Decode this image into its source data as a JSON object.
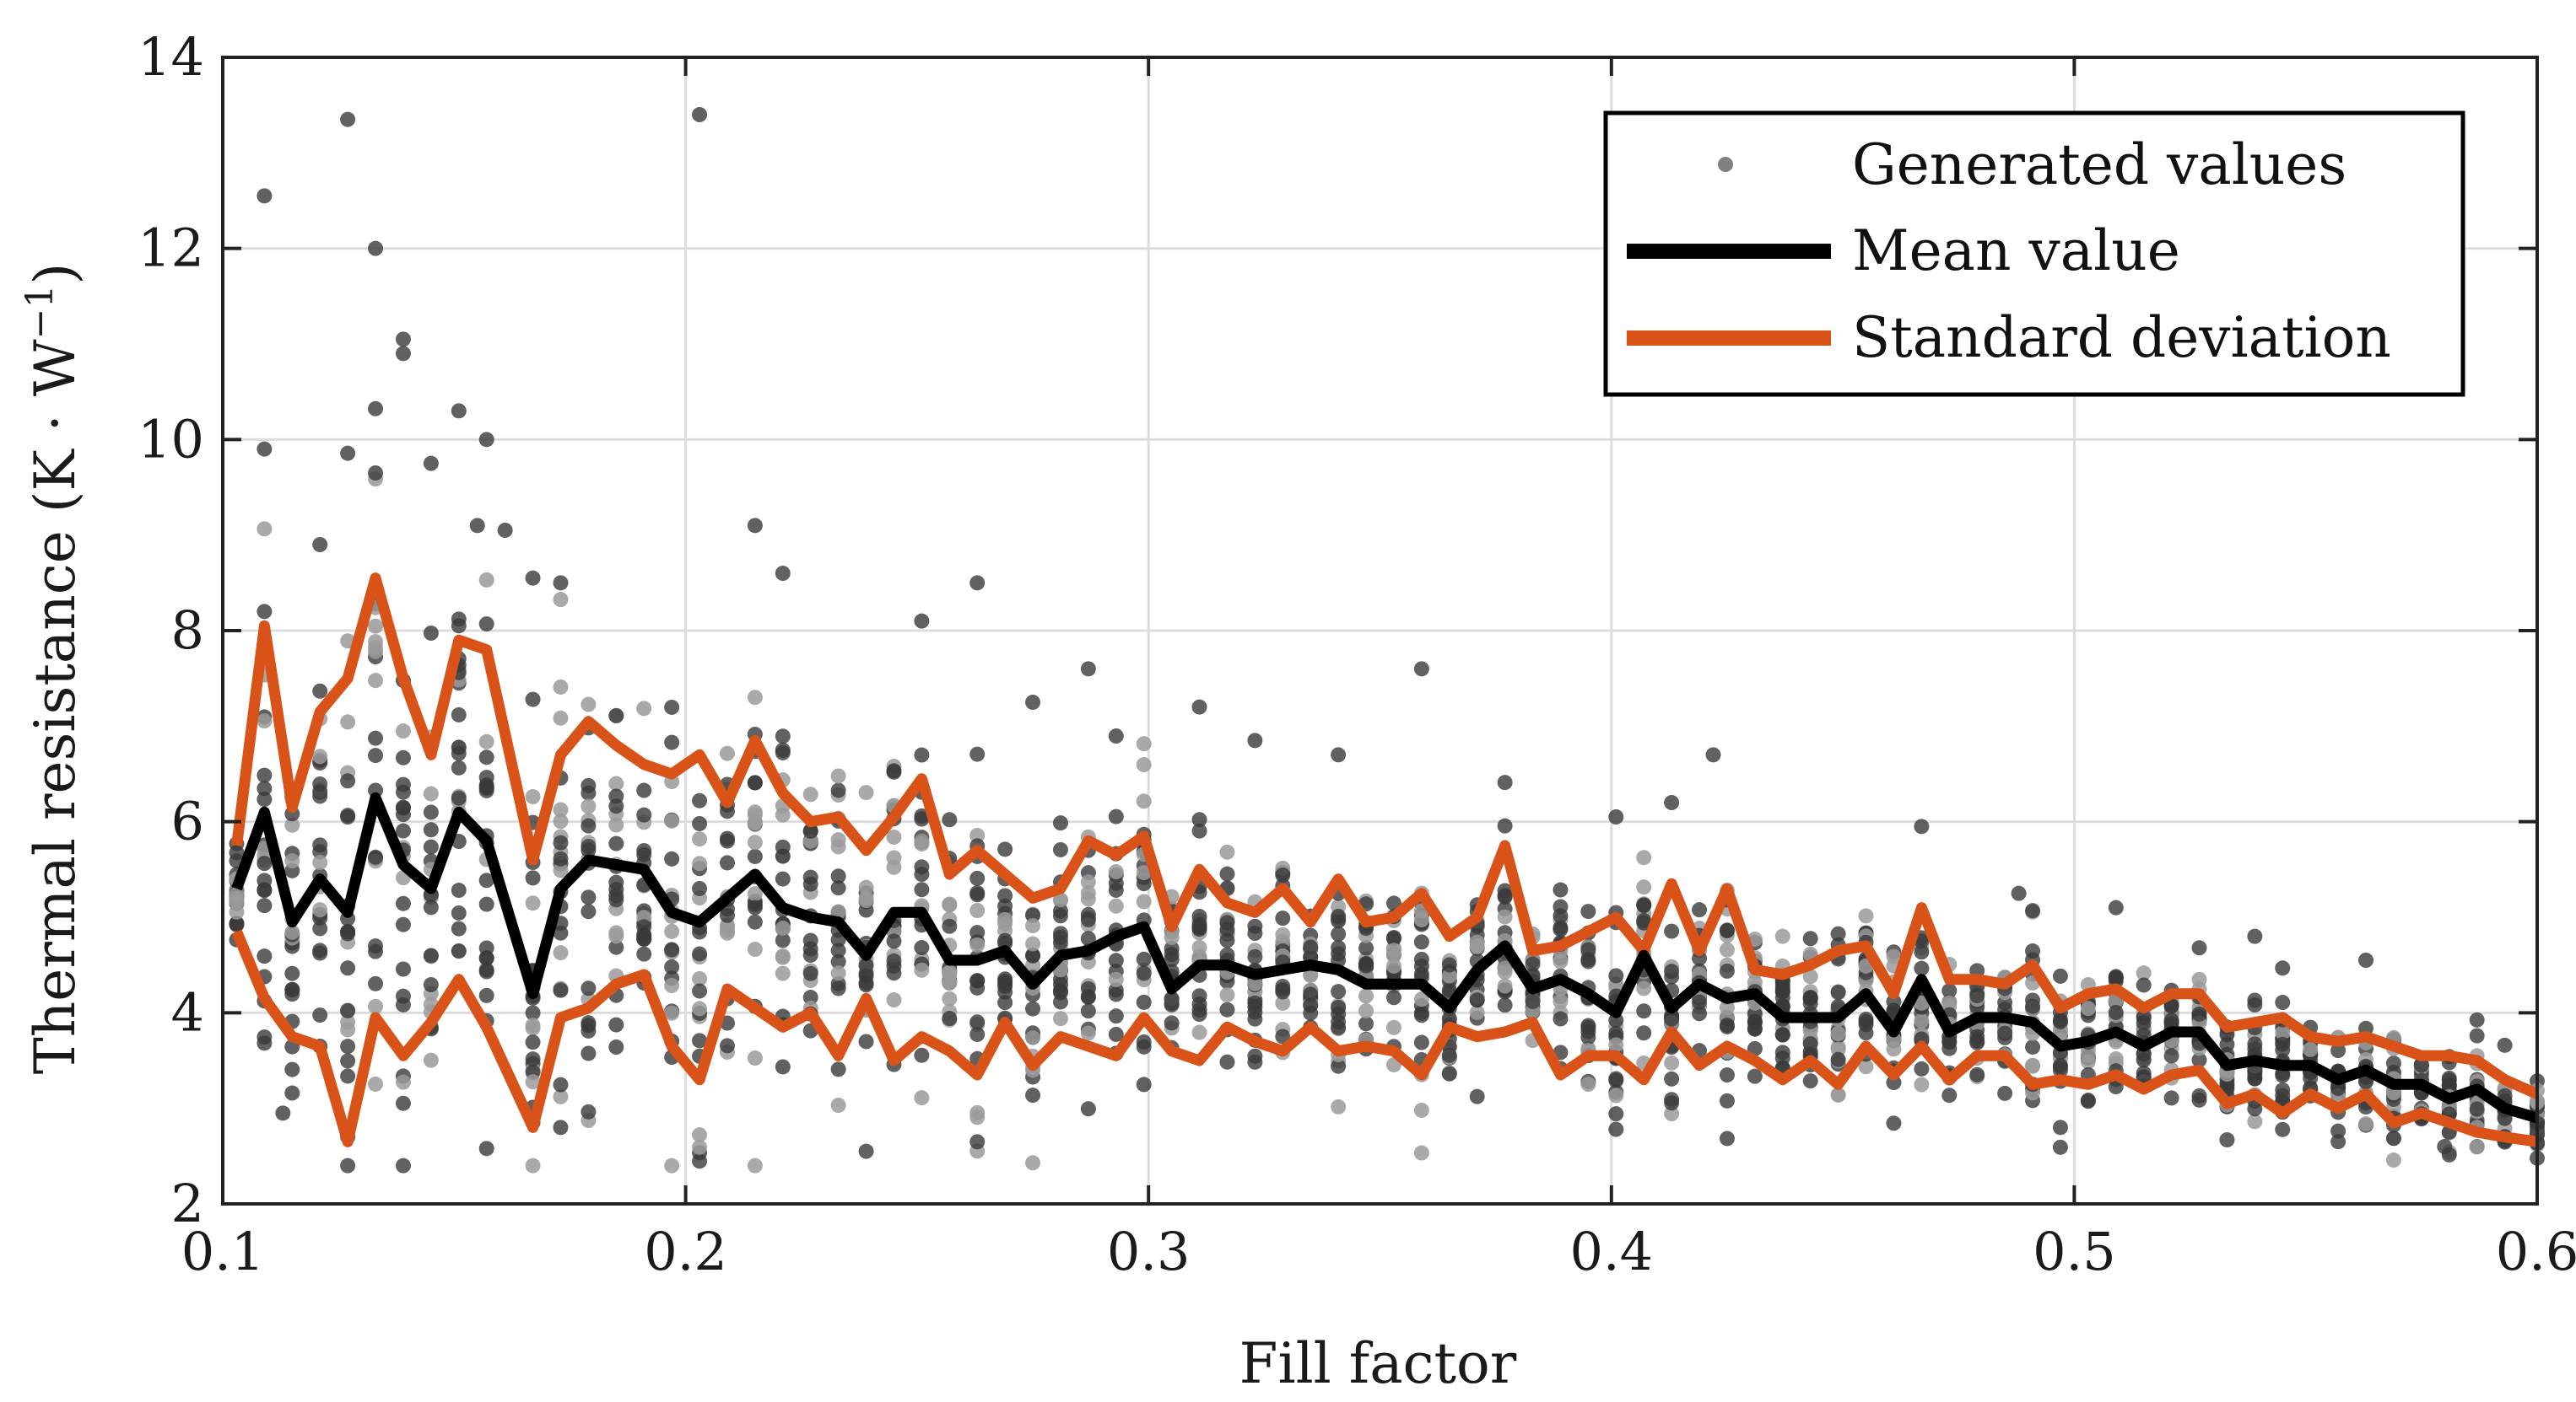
{
  "chart_data": {
    "type": "scatter+line",
    "title": "",
    "xlabel": "Fill factor",
    "ylabel": "Thermal resistance (K · W",
    "ylabel_superscript": "−1",
    "ylabel_close": ")",
    "xlim": [
      0.1,
      0.6
    ],
    "ylim": [
      2,
      14
    ],
    "xticks": [
      0.1,
      0.2,
      0.3,
      0.4,
      0.5,
      0.6
    ],
    "xtick_labels": [
      "0.1",
      "0.2",
      "0.3",
      "0.4",
      "0.5",
      "0.6"
    ],
    "yticks": [
      2,
      4,
      6,
      8,
      10,
      12,
      14
    ],
    "ytick_labels": [
      "2",
      "4",
      "6",
      "8",
      "10",
      "12",
      "14"
    ],
    "grid": true,
    "legend": {
      "position": "top-right",
      "entries": [
        {
          "label": "Generated values",
          "marker": "dot",
          "color": "#808080"
        },
        {
          "label": "Mean value",
          "marker": "line",
          "color": "#000000"
        },
        {
          "label": "Standard deviation",
          "marker": "line",
          "color": "#D95319"
        }
      ]
    },
    "colors": {
      "scatter_dark": "#3a3a3a",
      "scatter_light": "#9a9a9a",
      "mean": "#000000",
      "std": "#D95319",
      "grid": "#dcdcdc"
    },
    "series": [
      {
        "name": "Mean value",
        "x": [
          0.103,
          0.109,
          0.115,
          0.121,
          0.127,
          0.133,
          0.139,
          0.145,
          0.151,
          0.157,
          0.167,
          0.173,
          0.179,
          0.185,
          0.191,
          0.197,
          0.203,
          0.209,
          0.215,
          0.221,
          0.227,
          0.233,
          0.239,
          0.245,
          0.251,
          0.257,
          0.263,
          0.269,
          0.275,
          0.281,
          0.287,
          0.293,
          0.299,
          0.305,
          0.311,
          0.317,
          0.323,
          0.329,
          0.335,
          0.341,
          0.347,
          0.353,
          0.359,
          0.365,
          0.371,
          0.377,
          0.383,
          0.389,
          0.395,
          0.401,
          0.407,
          0.413,
          0.419,
          0.425,
          0.431,
          0.437,
          0.443,
          0.449,
          0.455,
          0.461,
          0.467,
          0.473,
          0.479,
          0.485,
          0.491,
          0.497,
          0.503,
          0.509,
          0.515,
          0.521,
          0.527,
          0.533,
          0.539,
          0.545,
          0.551,
          0.557,
          0.563,
          0.569,
          0.575,
          0.581,
          0.587,
          0.593,
          0.6
        ],
        "y": [
          5.3,
          6.1,
          4.95,
          5.4,
          5.05,
          6.25,
          5.55,
          5.3,
          6.1,
          5.8,
          4.2,
          5.3,
          5.6,
          5.55,
          5.5,
          5.05,
          4.95,
          5.2,
          5.45,
          5.1,
          5.0,
          4.95,
          4.6,
          5.05,
          5.05,
          4.55,
          4.55,
          4.65,
          4.3,
          4.6,
          4.65,
          4.8,
          4.9,
          4.25,
          4.5,
          4.5,
          4.4,
          4.45,
          4.5,
          4.45,
          4.3,
          4.3,
          4.3,
          4.05,
          4.45,
          4.7,
          4.25,
          4.35,
          4.2,
          4.0,
          4.6,
          4.05,
          4.3,
          4.15,
          4.2,
          3.95,
          3.95,
          3.95,
          4.2,
          3.8,
          4.35,
          3.8,
          3.95,
          3.95,
          3.9,
          3.65,
          3.7,
          3.8,
          3.65,
          3.8,
          3.8,
          3.45,
          3.5,
          3.45,
          3.45,
          3.3,
          3.4,
          3.25,
          3.25,
          3.1,
          3.2,
          3.0,
          2.9
        ]
      },
      {
        "name": "Standard deviation (upper)",
        "x": [
          0.103,
          0.109,
          0.115,
          0.121,
          0.127,
          0.133,
          0.139,
          0.145,
          0.151,
          0.157,
          0.167,
          0.173,
          0.179,
          0.185,
          0.191,
          0.197,
          0.203,
          0.209,
          0.215,
          0.221,
          0.227,
          0.233,
          0.239,
          0.245,
          0.251,
          0.257,
          0.263,
          0.269,
          0.275,
          0.281,
          0.287,
          0.293,
          0.299,
          0.305,
          0.311,
          0.317,
          0.323,
          0.329,
          0.335,
          0.341,
          0.347,
          0.353,
          0.359,
          0.365,
          0.371,
          0.377,
          0.383,
          0.389,
          0.395,
          0.401,
          0.407,
          0.413,
          0.419,
          0.425,
          0.431,
          0.437,
          0.443,
          0.449,
          0.455,
          0.461,
          0.467,
          0.473,
          0.479,
          0.485,
          0.491,
          0.497,
          0.503,
          0.509,
          0.515,
          0.521,
          0.527,
          0.533,
          0.539,
          0.545,
          0.551,
          0.557,
          0.563,
          0.569,
          0.575,
          0.581,
          0.587,
          0.593,
          0.6
        ],
        "y": [
          5.75,
          8.05,
          6.15,
          7.15,
          7.5,
          8.55,
          7.5,
          6.7,
          7.9,
          7.8,
          5.6,
          6.7,
          7.05,
          6.8,
          6.6,
          6.5,
          6.7,
          6.2,
          6.85,
          6.3,
          6.0,
          6.05,
          5.7,
          6.05,
          6.45,
          5.45,
          5.7,
          5.45,
          5.2,
          5.3,
          5.8,
          5.65,
          5.85,
          4.9,
          5.5,
          5.15,
          5.05,
          5.3,
          4.95,
          5.4,
          4.95,
          5.0,
          5.25,
          4.8,
          5.0,
          5.75,
          4.65,
          4.7,
          4.85,
          5.0,
          4.65,
          5.35,
          4.65,
          5.3,
          4.45,
          4.4,
          4.5,
          4.65,
          4.7,
          4.2,
          5.1,
          4.35,
          4.35,
          4.3,
          4.5,
          4.05,
          4.2,
          4.25,
          4.05,
          4.2,
          4.2,
          3.85,
          3.9,
          3.95,
          3.75,
          3.7,
          3.75,
          3.65,
          3.55,
          3.55,
          3.5,
          3.3,
          3.15
        ]
      },
      {
        "name": "Standard deviation (lower)",
        "x": [
          0.103,
          0.109,
          0.115,
          0.121,
          0.127,
          0.133,
          0.139,
          0.145,
          0.151,
          0.157,
          0.167,
          0.173,
          0.179,
          0.185,
          0.191,
          0.197,
          0.203,
          0.209,
          0.215,
          0.221,
          0.227,
          0.233,
          0.239,
          0.245,
          0.251,
          0.257,
          0.263,
          0.269,
          0.275,
          0.281,
          0.287,
          0.293,
          0.299,
          0.305,
          0.311,
          0.317,
          0.323,
          0.329,
          0.335,
          0.341,
          0.347,
          0.353,
          0.359,
          0.365,
          0.371,
          0.377,
          0.383,
          0.389,
          0.395,
          0.401,
          0.407,
          0.413,
          0.419,
          0.425,
          0.431,
          0.437,
          0.443,
          0.449,
          0.455,
          0.461,
          0.467,
          0.473,
          0.479,
          0.485,
          0.491,
          0.497,
          0.503,
          0.509,
          0.515,
          0.521,
          0.527,
          0.533,
          0.539,
          0.545,
          0.551,
          0.557,
          0.563,
          0.569,
          0.575,
          0.581,
          0.587,
          0.593,
          0.6
        ],
        "y": [
          4.85,
          4.15,
          3.75,
          3.65,
          2.65,
          3.95,
          3.55,
          3.9,
          4.35,
          3.85,
          2.8,
          3.95,
          4.05,
          4.3,
          4.4,
          3.65,
          3.3,
          4.25,
          4.05,
          3.85,
          4.0,
          3.55,
          4.15,
          3.5,
          3.75,
          3.6,
          3.35,
          3.9,
          3.45,
          3.75,
          3.65,
          3.55,
          3.95,
          3.6,
          3.5,
          3.85,
          3.7,
          3.6,
          3.85,
          3.6,
          3.65,
          3.6,
          3.35,
          3.85,
          3.75,
          3.8,
          3.9,
          3.35,
          3.55,
          3.55,
          3.3,
          3.8,
          3.45,
          3.65,
          3.5,
          3.3,
          3.5,
          3.25,
          3.65,
          3.35,
          3.65,
          3.3,
          3.55,
          3.55,
          3.25,
          3.3,
          3.25,
          3.35,
          3.2,
          3.35,
          3.4,
          3.05,
          3.15,
          2.95,
          3.15,
          3.0,
          3.15,
          2.85,
          2.95,
          2.85,
          2.75,
          2.7,
          2.65
        ]
      }
    ],
    "scatter_outliers": [
      {
        "x": 0.109,
        "y": 12.55
      },
      {
        "x": 0.109,
        "y": 9.9
      },
      {
        "x": 0.127,
        "y": 13.35
      },
      {
        "x": 0.133,
        "y": 12.0
      },
      {
        "x": 0.139,
        "y": 11.05
      },
      {
        "x": 0.139,
        "y": 10.9
      },
      {
        "x": 0.133,
        "y": 9.65
      },
      {
        "x": 0.145,
        "y": 9.75
      },
      {
        "x": 0.151,
        "y": 10.3
      },
      {
        "x": 0.157,
        "y": 10.0
      },
      {
        "x": 0.155,
        "y": 9.1
      },
      {
        "x": 0.161,
        "y": 9.05
      },
      {
        "x": 0.121,
        "y": 8.9
      },
      {
        "x": 0.109,
        "y": 8.2
      },
      {
        "x": 0.151,
        "y": 8.05
      },
      {
        "x": 0.167,
        "y": 8.55
      },
      {
        "x": 0.173,
        "y": 8.5
      },
      {
        "x": 0.203,
        "y": 13.4
      },
      {
        "x": 0.215,
        "y": 9.1
      },
      {
        "x": 0.221,
        "y": 8.6
      },
      {
        "x": 0.251,
        "y": 8.1
      },
      {
        "x": 0.263,
        "y": 8.5
      },
      {
        "x": 0.287,
        "y": 7.6
      },
      {
        "x": 0.359,
        "y": 7.6
      },
      {
        "x": 0.275,
        "y": 7.25
      },
      {
        "x": 0.311,
        "y": 7.2
      },
      {
        "x": 0.323,
        "y": 6.85
      },
      {
        "x": 0.341,
        "y": 6.7
      },
      {
        "x": 0.401,
        "y": 6.05
      },
      {
        "x": 0.413,
        "y": 6.2
      },
      {
        "x": 0.422,
        "y": 6.7
      },
      {
        "x": 0.467,
        "y": 5.95
      },
      {
        "x": 0.488,
        "y": 5.25
      },
      {
        "x": 0.509,
        "y": 5.1
      },
      {
        "x": 0.539,
        "y": 4.8
      },
      {
        "x": 0.563,
        "y": 4.55
      },
      {
        "x": 0.113,
        "y": 2.95
      },
      {
        "x": 0.127,
        "y": 2.7
      },
      {
        "x": 0.167,
        "y": 2.85
      },
      {
        "x": 0.239,
        "y": 2.55
      },
      {
        "x": 0.263,
        "y": 2.65
      },
      {
        "x": 0.173,
        "y": 2.8
      },
      {
        "x": 0.497,
        "y": 2.8
      },
      {
        "x": 0.58,
        "y": 2.6
      }
    ]
  }
}
